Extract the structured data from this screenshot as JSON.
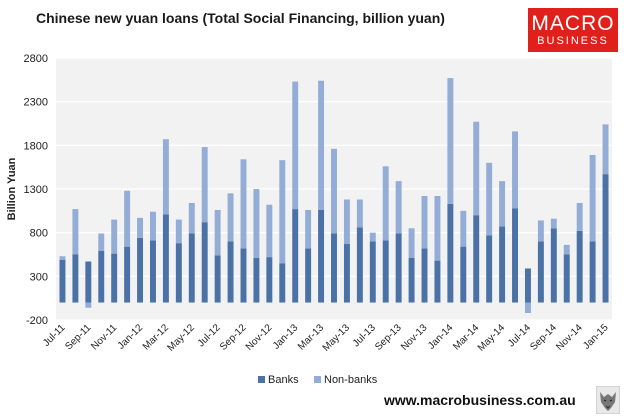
{
  "header": {
    "title": "Chinese new yuan loans (Total Social Financing, billion yuan)"
  },
  "logo": {
    "line1": "MACRO",
    "line2": "BUSINESS",
    "color": "#e0201b"
  },
  "footer": {
    "url": "www.macrobusiness.com.au"
  },
  "colors": {
    "banks": "#4b72a6",
    "nonbanks": "#94add6",
    "plot_bg": "#f2f2f2",
    "grid": "#ffffff"
  },
  "chart_data": {
    "type": "bar",
    "stacked": true,
    "title": "Chinese new yuan loans (Total Social Financing, billion yuan)",
    "ylabel": "Billion Yuan",
    "xlabel": "",
    "ylim": [
      -200,
      2800
    ],
    "yticks": [
      -200,
      300,
      800,
      1300,
      1800,
      2300,
      2800
    ],
    "grid": true,
    "legend_position": "bottom",
    "categories": [
      "Jul-11",
      "Aug-11",
      "Sep-11",
      "Oct-11",
      "Nov-11",
      "Dec-11",
      "Jan-12",
      "Feb-12",
      "Mar-12",
      "Apr-12",
      "May-12",
      "Jun-12",
      "Jul-12",
      "Aug-12",
      "Sep-12",
      "Oct-12",
      "Nov-12",
      "Dec-12",
      "Jan-13",
      "Feb-13",
      "Mar-13",
      "Apr-13",
      "May-13",
      "Jun-13",
      "Jul-13",
      "Aug-13",
      "Sep-13",
      "Oct-13",
      "Nov-13",
      "Dec-13",
      "Jan-14",
      "Feb-14",
      "Mar-14",
      "Apr-14",
      "May-14",
      "Jun-14",
      "Jul-14",
      "Aug-14",
      "Sep-14",
      "Oct-14",
      "Nov-14",
      "Dec-14",
      "Jan-15"
    ],
    "tick_labels": [
      "Jul-11",
      "Sep-11",
      "Nov-11",
      "Jan-12",
      "Mar-12",
      "May-12",
      "Jul-12",
      "Sep-12",
      "Nov-12",
      "Jan-13",
      "Mar-13",
      "May-13",
      "Jul-13",
      "Sep-13",
      "Nov-13",
      "Jan-14",
      "Mar-14",
      "May-14",
      "Jul-14",
      "Sep-14",
      "Nov-14",
      "Jan-15"
    ],
    "series": [
      {
        "name": "Banks",
        "values": [
          490,
          550,
          470,
          590,
          560,
          640,
          740,
          710,
          1010,
          680,
          790,
          920,
          540,
          700,
          620,
          510,
          520,
          450,
          1070,
          620,
          1060,
          790,
          670,
          860,
          700,
          710,
          790,
          510,
          620,
          480,
          1130,
          640,
          1000,
          770,
          870,
          1080,
          390,
          700,
          850,
          550,
          820,
          700,
          1470
        ]
      },
      {
        "name": "Non-banks",
        "values": [
          40,
          520,
          -60,
          200,
          390,
          640,
          230,
          330,
          860,
          270,
          350,
          860,
          520,
          550,
          1020,
          790,
          600,
          1180,
          1460,
          440,
          1480,
          970,
          510,
          320,
          100,
          850,
          600,
          340,
          600,
          740,
          1440,
          410,
          1070,
          830,
          520,
          880,
          -120,
          240,
          110,
          110,
          320,
          990,
          570
        ]
      }
    ]
  }
}
